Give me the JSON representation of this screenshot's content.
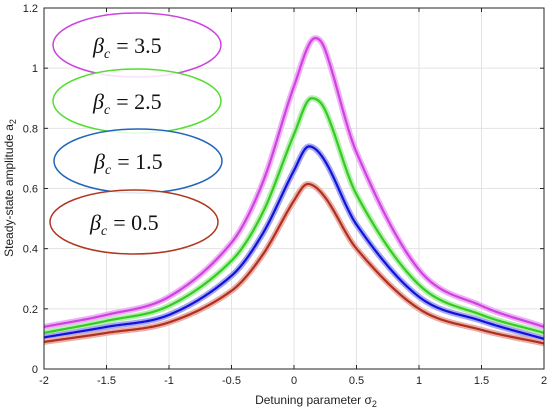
{
  "chart_data": {
    "type": "line",
    "xlabel": "Detuning parameter σ",
    "xlabel_sub": "2",
    "ylabel": "Steady-state amplitude a",
    "ylabel_sub": "2",
    "xlim": [
      -2,
      2
    ],
    "ylim": [
      0,
      1.2
    ],
    "xticks": [
      -2,
      -1.5,
      -1,
      -0.5,
      0,
      0.5,
      1,
      1.5,
      2
    ],
    "xtick_labels": [
      "-2",
      "-1.5",
      "-1",
      "-0.5",
      "0",
      "0.5",
      "1",
      "1.5",
      "2"
    ],
    "yticks": [
      0,
      0.2,
      0.4,
      0.6,
      0.8,
      1,
      1.2
    ],
    "ytick_labels": [
      "0",
      "0.2",
      "0.4",
      "0.6",
      "0.8",
      "1",
      "1.2"
    ],
    "grid": true,
    "legend_placement": "top-left",
    "series": [
      {
        "name": "β_c = 3.5",
        "legend_prefix": "β",
        "legend_sub": "c",
        "legend_value": "= 3.5",
        "color": "#cc44dd",
        "halo": "#f0b0f8",
        "peak_x": 0.17,
        "x": [
          -2,
          -1.5,
          -1,
          -0.5,
          -0.25,
          0,
          0.17,
          0.25,
          0.5,
          1,
          1.5,
          2
        ],
        "values": [
          0.14,
          0.18,
          0.24,
          0.42,
          0.62,
          0.94,
          1.1,
          1.06,
          0.72,
          0.33,
          0.21,
          0.14
        ]
      },
      {
        "name": "β_c = 2.5",
        "legend_prefix": "β",
        "legend_sub": "c",
        "legend_value": "= 2.5",
        "color": "#33cc22",
        "halo": "#b8eeb0",
        "peak_x": 0.14,
        "x": [
          -2,
          -1.5,
          -1,
          -0.5,
          -0.25,
          0,
          0.14,
          0.25,
          0.5,
          1,
          1.5,
          2
        ],
        "values": [
          0.12,
          0.16,
          0.21,
          0.36,
          0.52,
          0.78,
          0.9,
          0.86,
          0.58,
          0.28,
          0.18,
          0.12
        ]
      },
      {
        "name": "β_c = 1.5",
        "legend_prefix": "β",
        "legend_sub": "c",
        "legend_value": "= 1.5",
        "color": "#1111dd",
        "halo": "#a8a8f0",
        "peak_x": 0.12,
        "x": [
          -2,
          -1.5,
          -1,
          -0.5,
          -0.25,
          0,
          0.12,
          0.25,
          0.5,
          1,
          1.5,
          2
        ],
        "values": [
          0.105,
          0.14,
          0.18,
          0.31,
          0.45,
          0.66,
          0.74,
          0.69,
          0.48,
          0.24,
          0.16,
          0.1
        ]
      },
      {
        "name": "β_c = 0.5",
        "legend_prefix": "β",
        "legend_sub": "c",
        "legend_value": "= 0.5",
        "color": "#b03020",
        "halo": "#eab0a8",
        "peak_x": 0.11,
        "x": [
          -2,
          -1.5,
          -1,
          -0.5,
          -0.25,
          0,
          0.11,
          0.25,
          0.5,
          1,
          1.5,
          2
        ],
        "values": [
          0.09,
          0.12,
          0.155,
          0.26,
          0.38,
          0.56,
          0.615,
          0.57,
          0.4,
          0.2,
          0.13,
          0.085
        ]
      }
    ],
    "legend_ellipse_colors": [
      "#cc44dd",
      "#55dd33",
      "#2266bb",
      "#b03820"
    ]
  }
}
